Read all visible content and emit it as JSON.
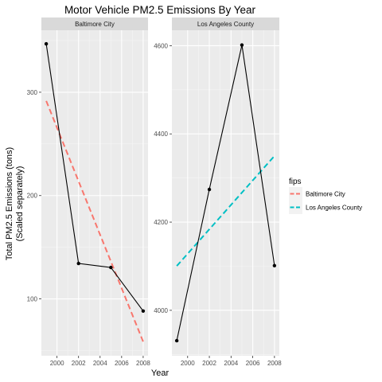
{
  "chart_data": {
    "type": "line",
    "title": "Motor Vehicle PM2.5 Emissions By Year",
    "xlabel": "Year",
    "ylabel_lines": [
      "Total PM2.5 Emissions (tons)",
      "(Scaled  separately)"
    ],
    "legend": {
      "title": "fips",
      "placement": "right",
      "entries": [
        "Baltimore City",
        "Los Angeles County"
      ]
    },
    "grid": true,
    "x_ticks": [
      2000,
      2002,
      2004,
      2006,
      2008
    ],
    "xlim": [
      1998.55,
      2008.45
    ],
    "panels": [
      {
        "strip": "Baltimore City",
        "color": "#F8766D",
        "x": [
          1999,
          2002,
          2005,
          2008
        ],
        "y": [
          346.82,
          134.31,
          130.43,
          88.28
        ],
        "trend": {
          "x": [
            1999,
            2008
          ],
          "y": [
            291.6,
            58.6
          ]
        },
        "y_ticks": [
          100,
          200,
          300
        ],
        "ylim": [
          45,
          360
        ]
      },
      {
        "strip": "Los Angeles County",
        "color": "#00BFC4",
        "x": [
          1999,
          2002,
          2005,
          2008
        ],
        "y": [
          3931.12,
          4274.03,
          4601.41,
          4101.32
        ],
        "trend": {
          "x": [
            1999,
            2008
          ],
          "y": [
            4100.5,
            4350
          ]
        },
        "y_ticks": [
          4000,
          4200,
          4400,
          4600
        ],
        "ylim": [
          3897,
          4635
        ]
      }
    ]
  }
}
